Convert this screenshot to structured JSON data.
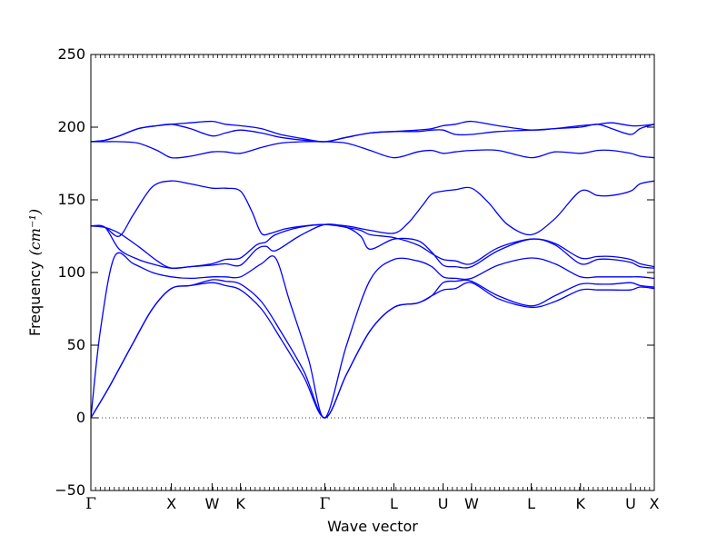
{
  "chart_data": {
    "type": "line",
    "title": "",
    "xlabel": "Wave vector",
    "ylabel": "Frequency",
    "ylabel_unit": "cm⁻¹",
    "ylim": [
      -50,
      250
    ],
    "yticks": [
      -50,
      0,
      50,
      100,
      150,
      200,
      250
    ],
    "ytick_labels": [
      "−50",
      "0",
      "50",
      "100",
      "150",
      "200",
      "250"
    ],
    "xlim": [
      0,
      5.95
    ],
    "high_symmetry_points": [
      {
        "label": "Γ",
        "x": 0.0
      },
      {
        "label": "X",
        "x": 0.85
      },
      {
        "label": "W",
        "x": 1.28
      },
      {
        "label": "K",
        "x": 1.58
      },
      {
        "label": "Γ",
        "x": 2.47
      },
      {
        "label": "L",
        "x": 3.2
      },
      {
        "label": "U",
        "x": 3.72
      },
      {
        "label": "W",
        "x": 4.02
      },
      {
        "label": "L",
        "x": 4.65
      },
      {
        "label": "K",
        "x": 5.17
      },
      {
        "label": "U",
        "x": 5.7
      },
      {
        "label": "X",
        "x": 5.95
      }
    ],
    "zero_line": true,
    "grid": false,
    "legend": "none",
    "line_color": "#0000ff",
    "series": [
      {
        "x": [
          0,
          0.2,
          0.45,
          0.65,
          0.85,
          1.05,
          1.28,
          1.42,
          1.58,
          1.8,
          2.0,
          2.25,
          2.47,
          2.7,
          2.95,
          3.2,
          3.45,
          3.6,
          3.72,
          3.85,
          4.02,
          4.3,
          4.65,
          4.9,
          5.17,
          5.35,
          5.5,
          5.7,
          5.8,
          5.95
        ],
        "y": [
          0,
          22,
          52,
          75,
          89,
          91,
          93,
          91,
          88,
          75,
          55,
          28,
          0,
          30,
          60,
          76,
          79,
          84,
          88,
          89,
          93,
          82,
          76,
          80,
          88,
          88,
          88,
          88,
          90,
          89
        ]
      },
      {
        "x": [
          0,
          0.2,
          0.45,
          0.65,
          0.85,
          1.05,
          1.28,
          1.42,
          1.58,
          1.8,
          2.0,
          2.25,
          2.47,
          2.7,
          2.95,
          3.2,
          3.45,
          3.6,
          3.72,
          3.85,
          4.02,
          4.3,
          4.65,
          4.9,
          5.17,
          5.35,
          5.5,
          5.7,
          5.8,
          5.95
        ],
        "y": [
          0,
          22,
          52,
          75,
          89,
          91,
          95,
          94,
          92,
          80,
          60,
          32,
          0,
          30,
          60,
          76,
          79,
          84,
          93,
          94,
          94,
          84,
          77,
          84,
          92,
          92,
          92,
          93,
          91,
          90
        ]
      },
      {
        "x": [
          0,
          0.1,
          0.25,
          0.45,
          0.65,
          0.85,
          1.05,
          1.28,
          1.42,
          1.58,
          1.8,
          1.95,
          2.1,
          2.3,
          2.47,
          2.7,
          2.95,
          3.2,
          3.45,
          3.6,
          3.72,
          3.85,
          4.02,
          4.3,
          4.65,
          4.9,
          5.17,
          5.35,
          5.5,
          5.7,
          5.8,
          5.95
        ],
        "y": [
          0,
          60,
          111,
          106,
          100,
          97,
          96,
          97,
          97,
          97,
          106,
          110,
          80,
          40,
          0,
          50,
          95,
          109,
          108,
          104,
          97,
          96,
          96,
          105,
          110,
          106,
          97,
          97,
          97,
          97,
          97,
          96
        ]
      },
      {
        "x": [
          0,
          0.15,
          0.3,
          0.5,
          0.7,
          0.85,
          1.05,
          1.28,
          1.42,
          1.58,
          1.75,
          1.85,
          1.95,
          2.2,
          2.47,
          2.7,
          2.85,
          2.95,
          3.2,
          3.45,
          3.6,
          3.72,
          3.85,
          4.02,
          4.3,
          4.65,
          4.9,
          5.17,
          5.35,
          5.5,
          5.7,
          5.8,
          5.95
        ],
        "y": [
          132,
          131,
          116,
          109,
          105,
          103,
          104,
          105,
          106,
          105,
          116,
          118,
          115,
          125,
          133,
          131,
          125,
          116,
          123,
          122,
          114,
          105,
          104,
          104,
          115,
          123,
          119,
          106,
          109,
          109,
          107,
          104,
          103
        ]
      },
      {
        "x": [
          0,
          0.15,
          0.3,
          0.5,
          0.7,
          0.85,
          1.05,
          1.28,
          1.42,
          1.58,
          1.75,
          1.85,
          1.95,
          2.2,
          2.47,
          2.7,
          2.85,
          2.95,
          3.2,
          3.45,
          3.6,
          3.72,
          3.85,
          4.02,
          4.3,
          4.65,
          4.9,
          5.17,
          5.35,
          5.5,
          5.7,
          5.8,
          5.95
        ],
        "y": [
          132,
          131,
          127,
          118,
          108,
          103,
          104,
          106,
          109,
          110,
          119,
          121,
          126,
          131,
          133,
          131,
          129,
          126,
          124,
          119,
          113,
          109,
          108,
          106,
          117,
          123,
          120,
          110,
          111,
          111,
          109,
          106,
          104
        ]
      },
      {
        "x": [
          0,
          0.15,
          0.3,
          0.45,
          0.65,
          0.85,
          1.05,
          1.28,
          1.42,
          1.58,
          1.7,
          1.8,
          1.9,
          2.05,
          2.25,
          2.47,
          2.7,
          2.95,
          3.2,
          3.35,
          3.5,
          3.6,
          3.72,
          3.85,
          4.02,
          4.2,
          4.4,
          4.65,
          4.9,
          5.17,
          5.35,
          5.5,
          5.7,
          5.8,
          5.95
        ],
        "y": [
          132,
          131,
          125,
          140,
          159,
          163,
          161,
          158,
          158,
          156,
          142,
          127,
          127,
          130,
          132,
          133,
          132,
          129,
          127,
          134,
          146,
          154,
          156,
          157,
          158,
          148,
          133,
          126,
          137,
          156,
          153,
          153,
          156,
          161,
          163
        ]
      },
      {
        "x": [
          0,
          0.15,
          0.3,
          0.5,
          0.7,
          0.85,
          1.05,
          1.28,
          1.42,
          1.58,
          1.8,
          2.0,
          2.25,
          2.47,
          2.7,
          2.95,
          3.2,
          3.45,
          3.6,
          3.72,
          3.85,
          4.02,
          4.3,
          4.65,
          4.9,
          5.17,
          5.35,
          5.5,
          5.7,
          5.8,
          5.95
        ],
        "y": [
          190,
          190,
          190,
          189,
          184,
          179,
          180,
          183,
          183,
          182,
          186,
          189,
          190,
          190,
          189,
          184,
          179,
          183,
          184,
          182,
          183,
          184,
          184,
          179,
          183,
          182,
          184,
          184,
          182,
          180,
          179
        ]
      },
      {
        "x": [
          0,
          0.15,
          0.3,
          0.5,
          0.7,
          0.85,
          1.05,
          1.28,
          1.42,
          1.58,
          1.8,
          2.0,
          2.25,
          2.47,
          2.7,
          2.95,
          3.2,
          3.45,
          3.6,
          3.72,
          3.85,
          4.02,
          4.3,
          4.65,
          4.9,
          5.17,
          5.35,
          5.5,
          5.7,
          5.8,
          5.95
        ],
        "y": [
          190,
          191,
          194,
          199,
          201,
          202,
          199,
          194,
          196,
          198,
          196,
          193,
          191,
          190,
          193,
          196,
          197,
          197,
          198,
          198,
          195,
          195,
          197,
          198,
          199,
          200,
          202,
          199,
          195,
          199,
          202
        ]
      },
      {
        "x": [
          0,
          0.15,
          0.3,
          0.5,
          0.7,
          0.85,
          1.05,
          1.28,
          1.42,
          1.58,
          1.8,
          2.0,
          2.25,
          2.47,
          2.7,
          2.95,
          3.2,
          3.45,
          3.6,
          3.72,
          3.85,
          4.02,
          4.3,
          4.65,
          4.9,
          5.17,
          5.35,
          5.5,
          5.7,
          5.8,
          5.95
        ],
        "y": [
          190,
          191,
          194,
          199,
          201,
          202,
          203,
          204,
          202,
          201,
          199,
          195,
          192,
          190,
          193,
          196,
          197,
          198,
          199,
          201,
          202,
          204,
          201,
          198,
          199,
          201,
          202,
          203,
          201,
          201,
          202
        ]
      }
    ]
  }
}
